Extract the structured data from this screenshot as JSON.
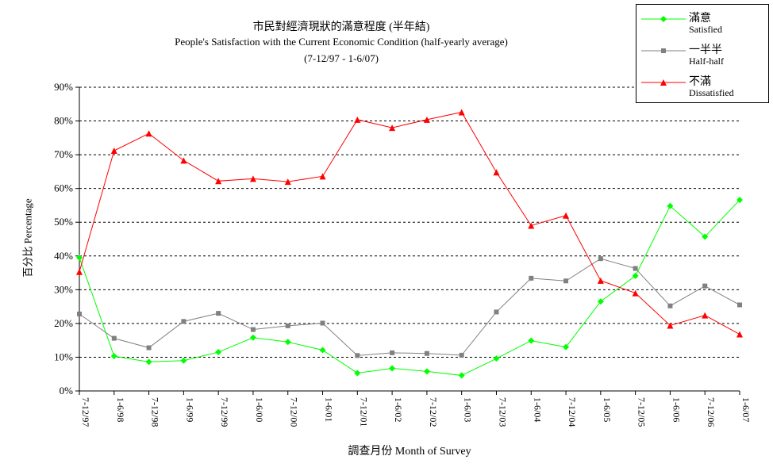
{
  "chart_data": {
    "type": "line",
    "title_zh": "市民對經濟現狀的滿意程度 (半年結)",
    "title": "People's Satisfaction with the Current Economic Condition (half-yearly average)",
    "subtitle": "(7-12/97 - 1-6/07)",
    "xlabel": "調查月份 Month of Survey",
    "ylabel": "百分比 Percentage",
    "ylim": [
      0,
      90
    ],
    "yticks": [
      "0%",
      "10%",
      "20%",
      "30%",
      "40%",
      "50%",
      "60%",
      "70%",
      "80%",
      "90%"
    ],
    "categories": [
      "7-12/97",
      "1-6/98",
      "7-12/98",
      "1-6/99",
      "7-12/99",
      "1-6/00",
      "7-12/00",
      "1-6/01",
      "7-12/01",
      "1-6/02",
      "7-12/02",
      "1-6/03",
      "7-12/03",
      "1-6/04",
      "7-12/04",
      "1-6/05",
      "7-12/05",
      "1-6/06",
      "7-12/06",
      "1-6/07"
    ],
    "grid": "horizontal dashed",
    "legend_position": "top-right",
    "series": [
      {
        "name": "滿意",
        "name_en": "Satisfied",
        "color": "#00ff00",
        "marker": "diamond",
        "values": [
          39.5,
          10.3,
          8.6,
          9.0,
          11.5,
          15.8,
          14.5,
          12.1,
          5.3,
          6.7,
          5.8,
          4.6,
          9.6,
          14.9,
          13.0,
          26.5,
          34.1,
          54.8,
          45.7,
          56.6
        ]
      },
      {
        "name": "一半半",
        "name_en": "Half-half",
        "color": "#808080",
        "marker": "square",
        "values": [
          22.8,
          15.6,
          12.8,
          20.6,
          23.0,
          18.2,
          19.3,
          20.1,
          10.5,
          11.3,
          11.1,
          10.6,
          23.4,
          33.4,
          32.6,
          39.2,
          36.3,
          25.2,
          31.1,
          25.5
        ]
      },
      {
        "name": "不滿",
        "name_en": "Dissatisfied",
        "color": "#ff0000",
        "marker": "triangle",
        "values": [
          35.3,
          71.2,
          76.3,
          68.3,
          62.2,
          62.9,
          62.0,
          63.6,
          80.4,
          78.0,
          80.4,
          82.6,
          64.8,
          49.0,
          52.0,
          32.7,
          29.0,
          19.4,
          22.4,
          16.8
        ]
      }
    ]
  }
}
